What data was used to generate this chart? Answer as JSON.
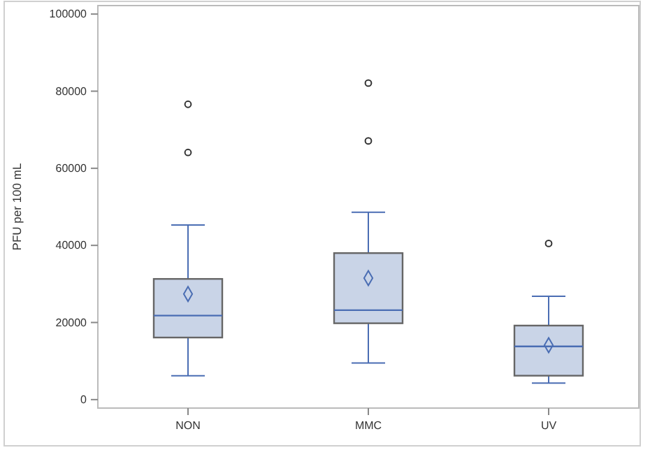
{
  "chart_data": {
    "type": "box",
    "ylabel": "PFU per 100 mL",
    "categories": [
      "NON",
      "MMC",
      "UV"
    ],
    "ylim": [
      -2200,
      102200
    ],
    "yticks": [
      0,
      20000,
      40000,
      60000,
      80000,
      100000
    ],
    "color": "#c9d4e7",
    "boxes": [
      {
        "low": 6200,
        "q1": 16100,
        "median": 21800,
        "q3": 31300,
        "high": 45300,
        "mean": 27400,
        "outliers": [
          64100,
          76600
        ]
      },
      {
        "low": 9500,
        "q1": 19800,
        "median": 23200,
        "q3": 38000,
        "high": 48600,
        "mean": 31500,
        "outliers": [
          67100,
          82100
        ]
      },
      {
        "low": 4300,
        "q1": 6200,
        "median": 13800,
        "q3": 19200,
        "high": 26800,
        "mean": 14100,
        "outliers": [
          40500
        ]
      }
    ],
    "grid": false
  }
}
